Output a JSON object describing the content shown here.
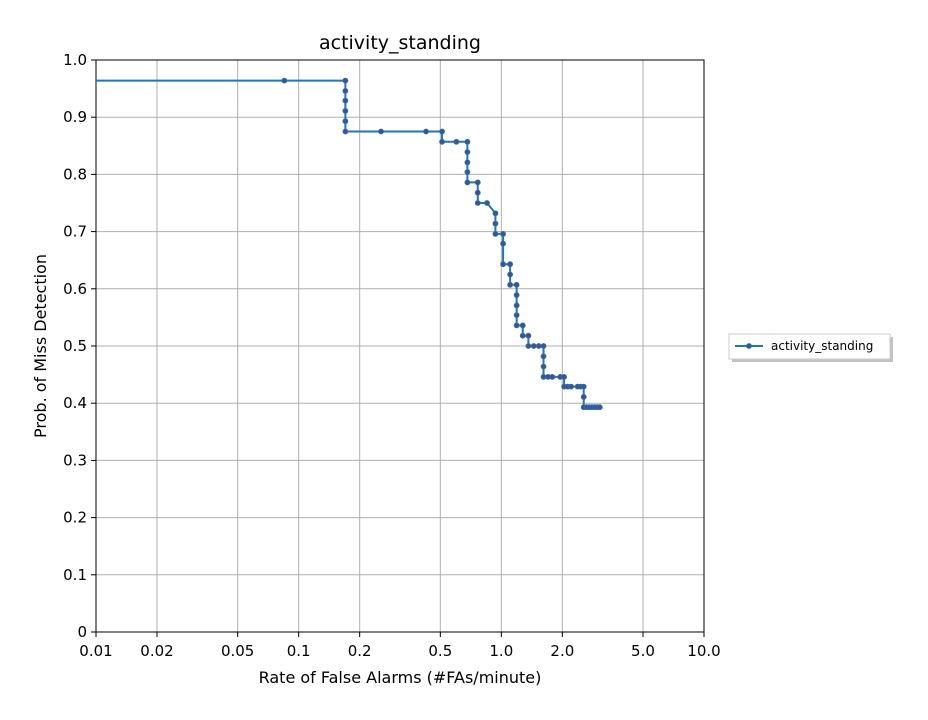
{
  "chart_data": {
    "type": "line",
    "title": "activity_standing",
    "xlabel": "Rate of False Alarms (#FAs/minute)",
    "ylabel": "Prob. of Miss Detection",
    "xscale": "log",
    "xlim": [
      0.01,
      10.0
    ],
    "ylim": [
      0,
      1.0
    ],
    "xticks": [
      {
        "value": 0.01,
        "label": "0.01"
      },
      {
        "value": 0.02,
        "label": "0.02"
      },
      {
        "value": 0.05,
        "label": "0.05"
      },
      {
        "value": 0.1,
        "label": "0.1"
      },
      {
        "value": 0.2,
        "label": "0.2"
      },
      {
        "value": 0.5,
        "label": "0.5"
      },
      {
        "value": 1.0,
        "label": "1.0"
      },
      {
        "value": 2.0,
        "label": "2.0"
      },
      {
        "value": 5.0,
        "label": "5.0"
      },
      {
        "value": 10.0,
        "label": "10.0"
      }
    ],
    "yticks": [
      {
        "value": 0,
        "label": "0"
      },
      {
        "value": 0.1,
        "label": "0.1"
      },
      {
        "value": 0.2,
        "label": "0.2"
      },
      {
        "value": 0.3,
        "label": "0.3"
      },
      {
        "value": 0.4,
        "label": "0.4"
      },
      {
        "value": 0.5,
        "label": "0.5"
      },
      {
        "value": 0.6,
        "label": "0.6"
      },
      {
        "value": 0.7,
        "label": "0.7"
      },
      {
        "value": 0.8,
        "label": "0.8"
      },
      {
        "value": 0.9,
        "label": "0.9"
      },
      {
        "value": 1.0,
        "label": "1.0"
      }
    ],
    "grid": true,
    "legend_placement": "right-outside",
    "series": [
      {
        "name": "activity_standing",
        "color": "#1f77b4",
        "marker_color": "#4a4e8a",
        "points": [
          [
            0.0085,
            0.964
          ],
          [
            0.085,
            0.964
          ],
          [
            0.17,
            0.964
          ],
          [
            0.17,
            0.946
          ],
          [
            0.17,
            0.929
          ],
          [
            0.17,
            0.911
          ],
          [
            0.17,
            0.893
          ],
          [
            0.17,
            0.875
          ],
          [
            0.255,
            0.875
          ],
          [
            0.425,
            0.875
          ],
          [
            0.51,
            0.875
          ],
          [
            0.51,
            0.857
          ],
          [
            0.6,
            0.857
          ],
          [
            0.68,
            0.857
          ],
          [
            0.68,
            0.839
          ],
          [
            0.68,
            0.821
          ],
          [
            0.68,
            0.804
          ],
          [
            0.68,
            0.786
          ],
          [
            0.765,
            0.786
          ],
          [
            0.765,
            0.768
          ],
          [
            0.765,
            0.75
          ],
          [
            0.85,
            0.75
          ],
          [
            0.935,
            0.732
          ],
          [
            0.935,
            0.714
          ],
          [
            0.935,
            0.696
          ],
          [
            1.02,
            0.696
          ],
          [
            1.02,
            0.679
          ],
          [
            1.02,
            0.643
          ],
          [
            1.105,
            0.643
          ],
          [
            1.105,
            0.625
          ],
          [
            1.105,
            0.607
          ],
          [
            1.19,
            0.607
          ],
          [
            1.19,
            0.589
          ],
          [
            1.19,
            0.571
          ],
          [
            1.19,
            0.554
          ],
          [
            1.19,
            0.536
          ],
          [
            1.275,
            0.536
          ],
          [
            1.275,
            0.518
          ],
          [
            1.36,
            0.518
          ],
          [
            1.36,
            0.5
          ],
          [
            1.445,
            0.5
          ],
          [
            1.53,
            0.5
          ],
          [
            1.615,
            0.5
          ],
          [
            1.615,
            0.482
          ],
          [
            1.615,
            0.464
          ],
          [
            1.615,
            0.446
          ],
          [
            1.7,
            0.446
          ],
          [
            1.785,
            0.446
          ],
          [
            1.955,
            0.446
          ],
          [
            2.04,
            0.446
          ],
          [
            2.04,
            0.429
          ],
          [
            2.125,
            0.429
          ],
          [
            2.21,
            0.429
          ],
          [
            2.38,
            0.429
          ],
          [
            2.465,
            0.429
          ],
          [
            2.55,
            0.429
          ],
          [
            2.55,
            0.411
          ],
          [
            2.55,
            0.393
          ],
          [
            2.635,
            0.393
          ],
          [
            2.72,
            0.393
          ],
          [
            2.805,
            0.393
          ],
          [
            2.89,
            0.393
          ],
          [
            2.975,
            0.393
          ],
          [
            3.06,
            0.393
          ]
        ]
      }
    ]
  }
}
